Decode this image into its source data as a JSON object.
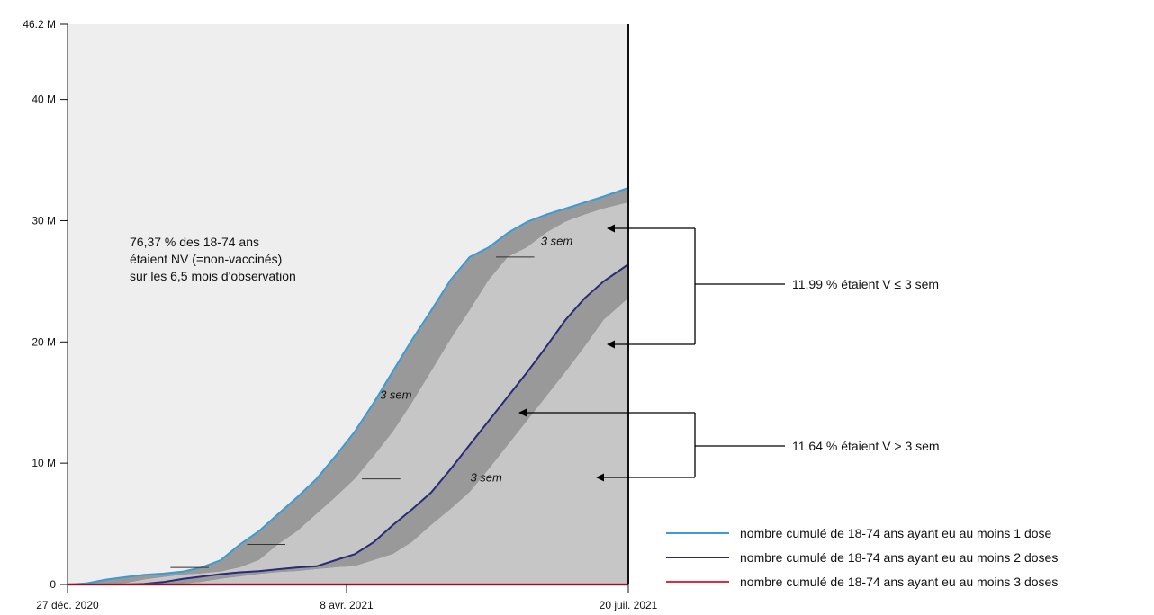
{
  "chart_data": {
    "type": "area",
    "x_dates": [
      "2020-12-27",
      "2021-01-03",
      "2021-01-10",
      "2021-01-17",
      "2021-01-24",
      "2021-01-31",
      "2021-02-07",
      "2021-02-14",
      "2021-02-21",
      "2021-02-28",
      "2021-03-07",
      "2021-03-14",
      "2021-03-21",
      "2021-03-28",
      "2021-04-04",
      "2021-04-11",
      "2021-04-18",
      "2021-04-25",
      "2021-05-02",
      "2021-05-09",
      "2021-05-16",
      "2021-05-23",
      "2021-05-30",
      "2021-06-06",
      "2021-06-13",
      "2021-06-20",
      "2021-06-27",
      "2021-07-04",
      "2021-07-11",
      "2021-07-20"
    ],
    "series": [
      {
        "name": "nombre cumulé de 18-74 ans ayant eu au moins 1 dose",
        "color": "#3a9bd9",
        "values": [
          0,
          0.1,
          0.4,
          0.6,
          0.8,
          0.9,
          1.05,
          1.4,
          2.0,
          3.3,
          4.4,
          5.8,
          7.2,
          8.7,
          10.6,
          12.6,
          15.0,
          17.6,
          20.2,
          22.6,
          25.1,
          27.0,
          27.8,
          29.0,
          29.9,
          30.5,
          31.0,
          31.5,
          32.0,
          32.7
        ]
      },
      {
        "name": "nombre cumulé de 18-74 ans ayant eu au moins 2 doses",
        "color": "#2a2a78",
        "values": [
          0,
          0,
          0,
          0,
          0.05,
          0.2,
          0.45,
          0.65,
          0.85,
          1.0,
          1.1,
          1.25,
          1.4,
          1.5,
          2.0,
          2.5,
          3.5,
          4.9,
          6.2,
          7.6,
          9.5,
          11.5,
          13.5,
          15.5,
          17.5,
          19.6,
          21.8,
          23.6,
          25.0,
          26.4
        ]
      },
      {
        "name": "nombre cumulé de 18-74 ans ayant eu au moins 3 doses",
        "color": "#e8283c",
        "values": [
          0,
          0,
          0,
          0,
          0,
          0,
          0,
          0,
          0,
          0,
          0,
          0,
          0,
          0,
          0,
          0,
          0,
          0,
          0,
          0,
          0,
          0,
          0,
          0,
          0,
          0,
          0,
          0,
          0,
          0
        ]
      }
    ],
    "bands": {
      "dose1_minus_3sem": [
        0,
        0,
        0,
        0.1,
        0.4,
        0.6,
        0.8,
        0.9,
        1.05,
        1.4,
        2.0,
        3.3,
        4.4,
        5.8,
        7.2,
        8.7,
        10.6,
        12.6,
        15.0,
        17.6,
        20.2,
        22.6,
        25.1,
        27.0,
        27.8,
        29.0,
        29.9,
        30.5,
        31.0,
        31.5
      ],
      "dose2_minus_3sem": [
        0,
        0,
        0,
        0,
        0,
        0,
        0.05,
        0.2,
        0.45,
        0.65,
        0.85,
        1.0,
        1.1,
        1.25,
        1.4,
        1.5,
        2.0,
        2.5,
        3.5,
        4.9,
        6.2,
        7.6,
        9.5,
        11.5,
        13.5,
        15.5,
        17.5,
        19.6,
        21.8,
        23.6
      ]
    },
    "ylim": [
      0,
      46.2
    ],
    "y_ticks": [
      {
        "value": 0,
        "label": "0"
      },
      {
        "value": 10,
        "label": "10 M"
      },
      {
        "value": 20,
        "label": "20 M"
      },
      {
        "value": 30,
        "label": "30 M"
      },
      {
        "value": 40,
        "label": "40 M"
      },
      {
        "value": 46.2,
        "label": "46.2 M"
      }
    ],
    "x_ticks": [
      {
        "date": "2020-12-27",
        "label": "27 déc. 2020"
      },
      {
        "date": "2021-04-08",
        "label": "8 avr. 2021"
      },
      {
        "date": "2021-07-20",
        "label": "20 juil. 2021"
      }
    ],
    "colors": {
      "background_area": "#eeeeee",
      "dark_band": "#999999",
      "light_band": "#c6c6c6"
    }
  },
  "annotations": {
    "nv_text": [
      "76,37 % des 18-74 ans",
      "étaient NV (=non-vaccinés)",
      "sur les 6,5 mois d'observation"
    ],
    "v_le_3sem": "11,99 % étaient V ≤ 3 sem",
    "v_gt_3sem": "11,64 % étaient V > 3 sem",
    "sem_label": "3 sem"
  },
  "legend": [
    {
      "label": "nombre cumulé de 18-74 ans ayant eu au moins 1 dose",
      "color": "#3a9bd9"
    },
    {
      "label": "nombre cumulé de 18-74 ans ayant eu au moins 2 doses",
      "color": "#2a2a78"
    },
    {
      "label": "nombre cumulé de 18-74 ans ayant eu au moins 3 doses",
      "color": "#e8283c"
    }
  ]
}
